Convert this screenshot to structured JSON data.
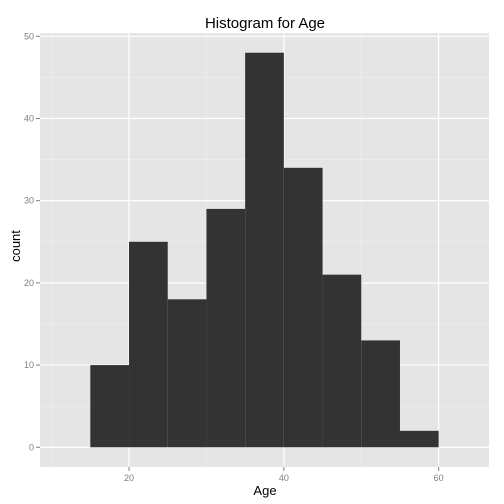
{
  "chart_data": {
    "type": "histogram",
    "title": "Histogram for Age",
    "xlabel": "Age",
    "ylabel": "count",
    "bin_width": 5,
    "bins": [
      {
        "x0": 15,
        "x1": 20,
        "count": 10
      },
      {
        "x0": 20,
        "x1": 25,
        "count": 25
      },
      {
        "x0": 25,
        "x1": 30,
        "count": 18
      },
      {
        "x0": 30,
        "x1": 35,
        "count": 29
      },
      {
        "x0": 35,
        "x1": 40,
        "count": 48
      },
      {
        "x0": 40,
        "x1": 45,
        "count": 34
      },
      {
        "x0": 45,
        "x1": 50,
        "count": 21
      },
      {
        "x0": 50,
        "x1": 55,
        "count": 13
      },
      {
        "x0": 55,
        "x1": 60,
        "count": 2
      }
    ],
    "xlim": [
      8.5,
      66.5
    ],
    "ylim": [
      -2.4,
      50.4
    ],
    "x_ticks": [
      20,
      40,
      60
    ],
    "x_minor_ticks": [
      10,
      30,
      50
    ],
    "y_ticks": [
      0,
      10,
      20,
      30,
      40,
      50
    ],
    "y_minor_ticks": [
      5,
      15,
      25,
      35,
      45
    ],
    "grid": true,
    "colors": {
      "panel_background": "#e5e5e5",
      "grid_major": "#ffffff",
      "grid_minor": "#f2f2f2",
      "bar_fill": "#333333",
      "tick_label": "#7f7f7f"
    }
  }
}
